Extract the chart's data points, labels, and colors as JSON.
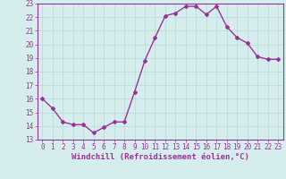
{
  "x": [
    0,
    1,
    2,
    3,
    4,
    5,
    6,
    7,
    8,
    9,
    10,
    11,
    12,
    13,
    14,
    15,
    16,
    17,
    18,
    19,
    20,
    21,
    22,
    23
  ],
  "y": [
    16.0,
    15.3,
    14.3,
    14.1,
    14.1,
    13.5,
    13.9,
    14.3,
    14.3,
    16.5,
    18.8,
    20.5,
    22.1,
    22.3,
    22.8,
    22.8,
    22.2,
    22.8,
    21.3,
    20.5,
    20.1,
    19.1,
    18.9,
    18.9
  ],
  "line_color": "#993399",
  "marker": "D",
  "marker_size": 2,
  "linewidth": 1.0,
  "xlabel": "Windchill (Refroidissement éolien,°C)",
  "xlabel_fontsize": 6.5,
  "ylim": [
    13,
    23
  ],
  "xlim": [
    -0.5,
    23.5
  ],
  "yticks": [
    13,
    14,
    15,
    16,
    17,
    18,
    19,
    20,
    21,
    22,
    23
  ],
  "xticks": [
    0,
    1,
    2,
    3,
    4,
    5,
    6,
    7,
    8,
    9,
    10,
    11,
    12,
    13,
    14,
    15,
    16,
    17,
    18,
    19,
    20,
    21,
    22,
    23
  ],
  "bg_color": "#d5eeed",
  "grid_color": "#b8d8d8",
  "tick_color": "#993399",
  "tick_fontsize": 5.5,
  "spine_color": "#993399"
}
